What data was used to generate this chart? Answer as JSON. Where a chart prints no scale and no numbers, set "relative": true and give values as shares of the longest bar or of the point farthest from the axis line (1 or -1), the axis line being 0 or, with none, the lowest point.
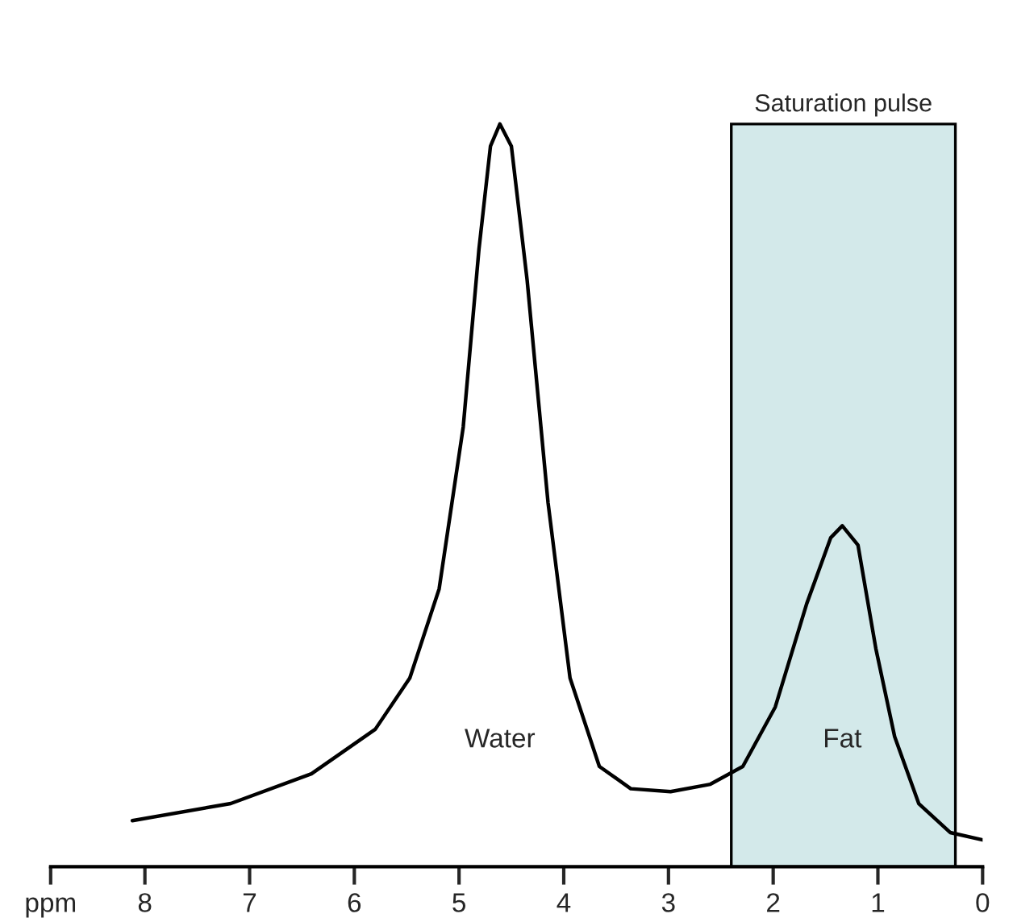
{
  "chart_data": {
    "type": "line",
    "relative": true,
    "x": [
      8.12,
      7.18,
      6.41,
      5.8,
      5.47,
      5.19,
      4.96,
      4.81,
      4.7,
      4.61,
      4.5,
      4.35,
      4.15,
      3.94,
      3.66,
      3.36,
      2.98,
      2.6,
      2.29,
      1.98,
      1.68,
      1.45,
      1.34,
      1.19,
      1.02,
      0.84,
      0.61,
      0.31,
      0.0
    ],
    "series": [
      {
        "color": "#000000",
        "values": [
          0.062,
          0.085,
          0.125,
          0.185,
          0.254,
          0.374,
          0.592,
          0.831,
          0.97,
          1.0,
          0.97,
          0.79,
          0.49,
          0.254,
          0.135,
          0.105,
          0.101,
          0.111,
          0.135,
          0.215,
          0.354,
          0.443,
          0.459,
          0.433,
          0.294,
          0.175,
          0.085,
          0.046,
          0.036
        ]
      }
    ],
    "xlim": [
      8.9,
      0
    ],
    "xticks": [
      {
        "value": 8.9,
        "label": "ppm"
      },
      8,
      7,
      6,
      5,
      4,
      3,
      2,
      1,
      0
    ],
    "bands": [
      {
        "axis": "x",
        "from": 2.4,
        "to": 0.26,
        "label": "Saturation pulse",
        "color": "#d3e9ea"
      }
    ],
    "annotations": [
      "Water",
      "Fat"
    ],
    "grid": false,
    "legend": false,
    "marker": "none",
    "line_style": "solid"
  }
}
